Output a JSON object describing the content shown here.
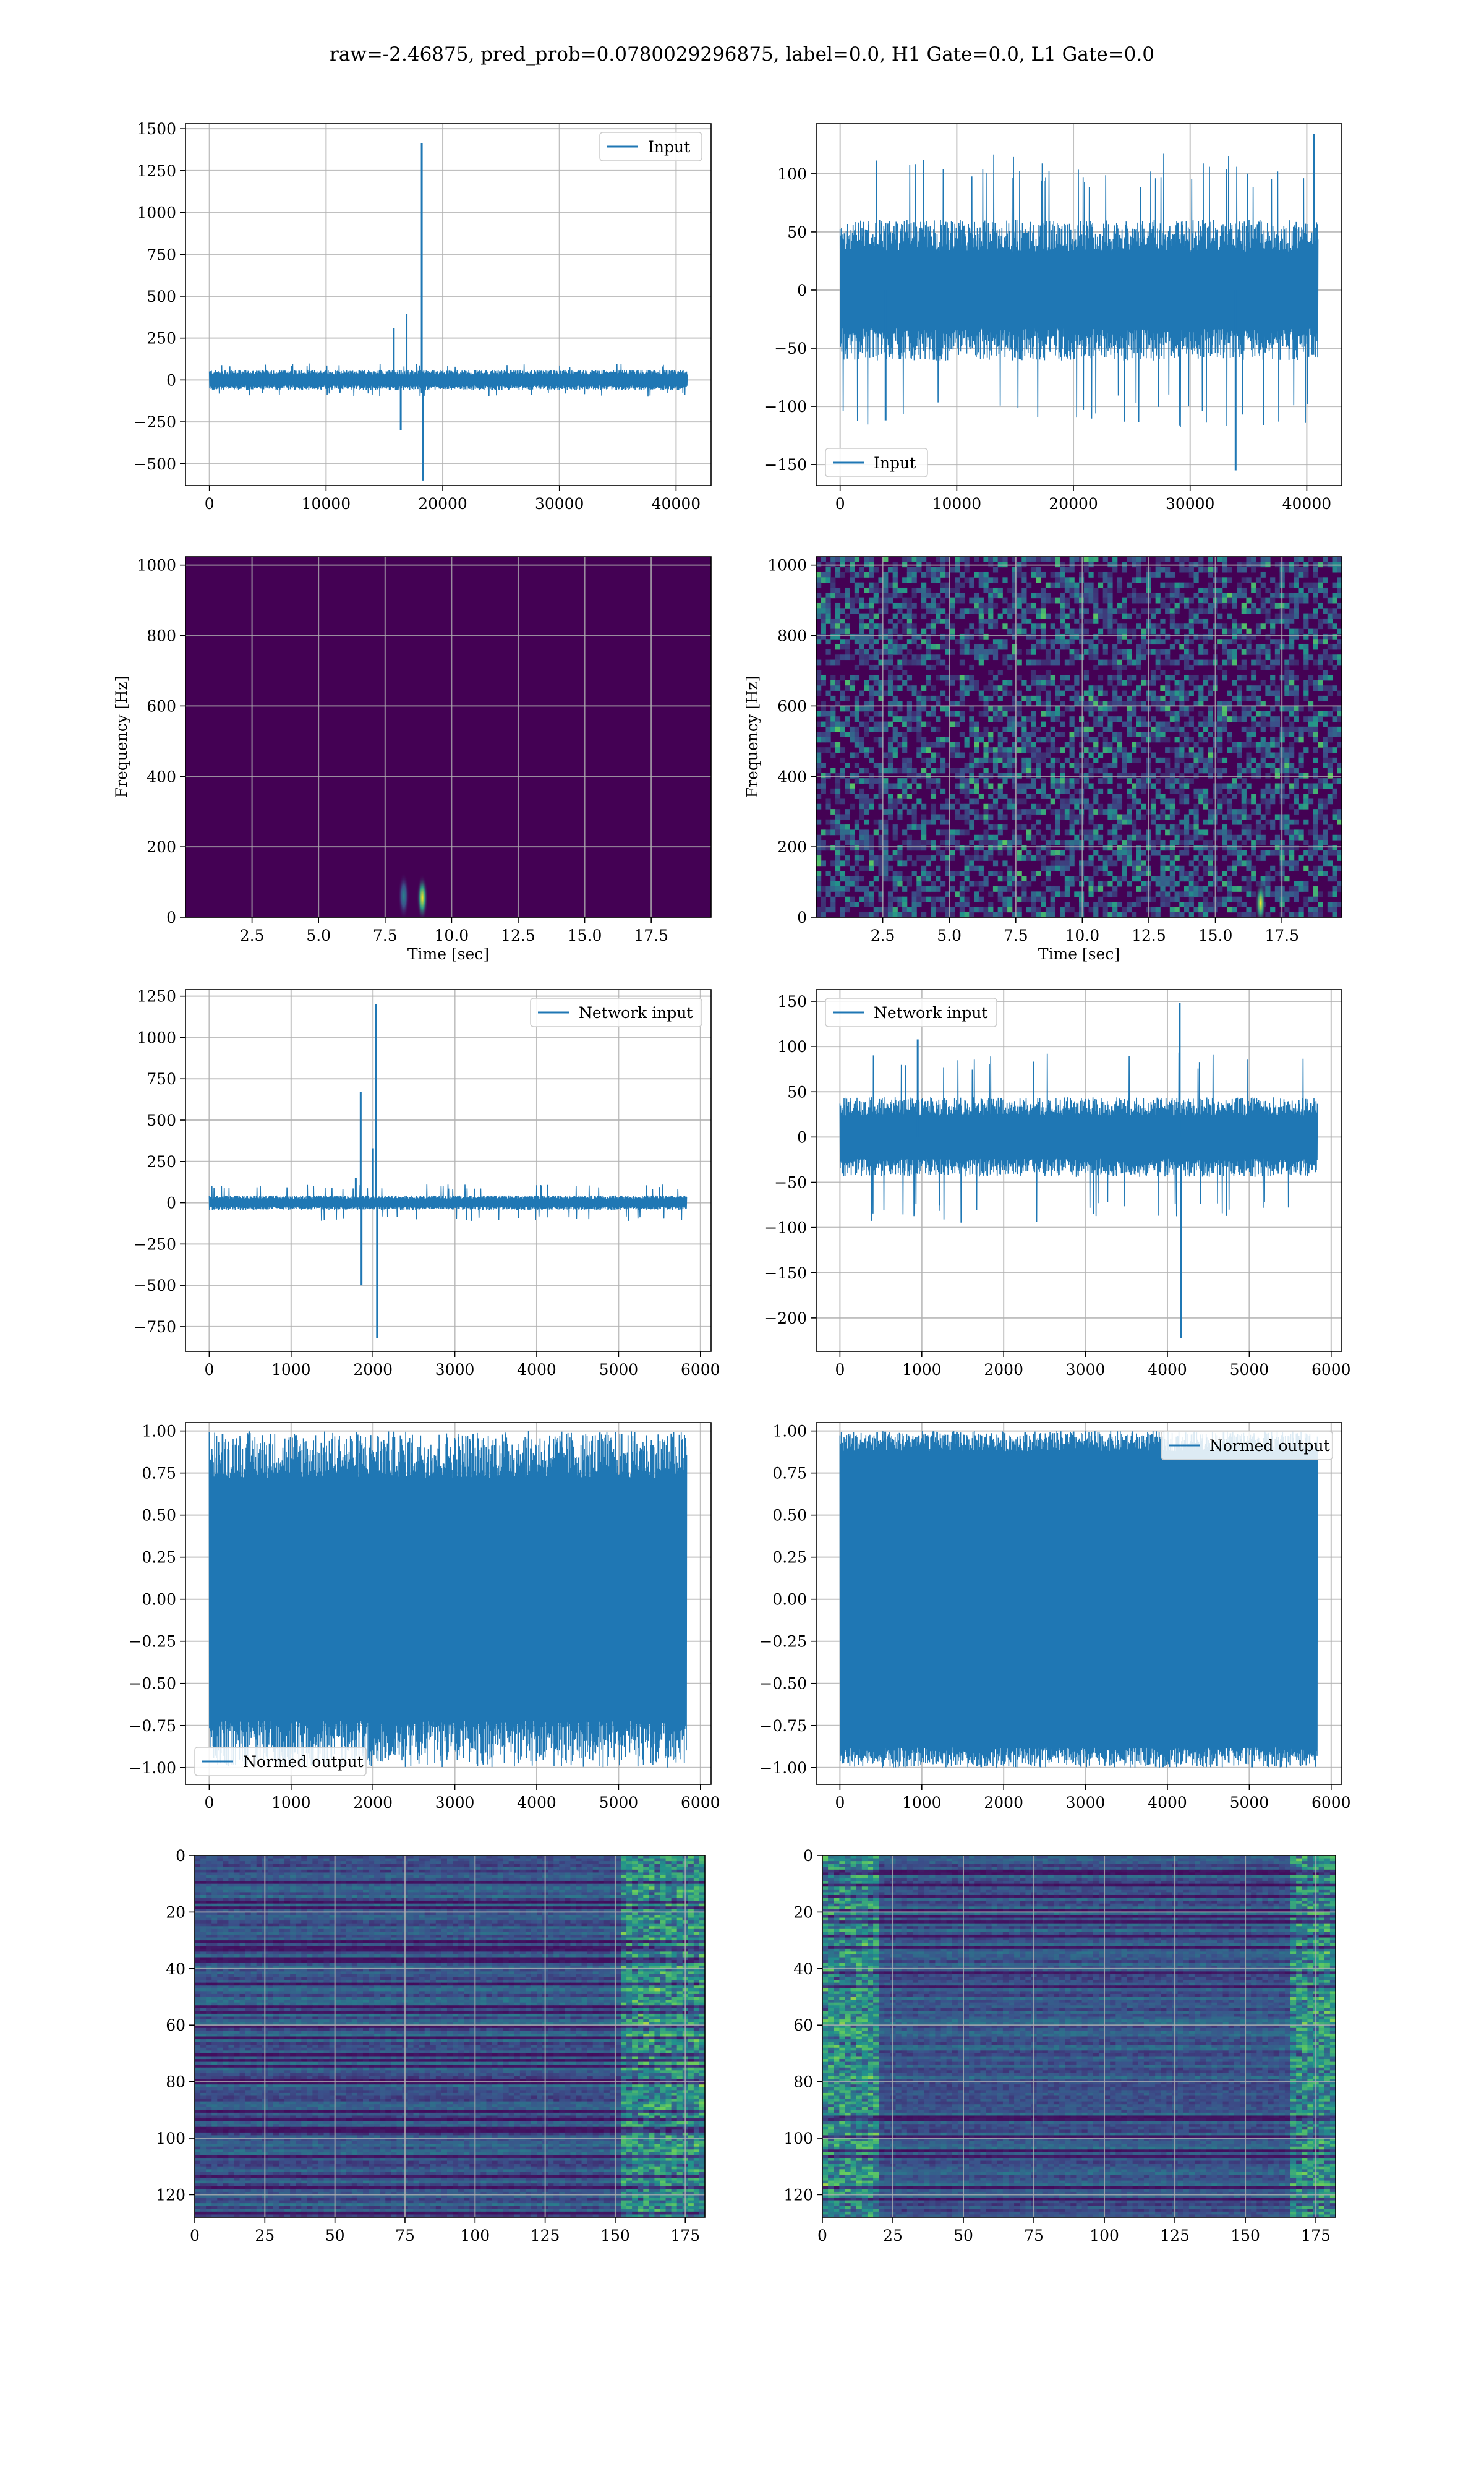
{
  "suptitle": "raw=-2.46875, pred_prob=0.0780029296875, label=0.0, H1 Gate=0.0, L1 Gate=0.0",
  "colors": {
    "line": "#1f77b4",
    "grid": "#b0b0b0",
    "viridis_dark": "#440154"
  },
  "chart_data": [
    {
      "id": "h1-input",
      "type": "line",
      "legend": {
        "label": "Input",
        "placement": "top-right"
      },
      "xticks": [
        0,
        10000,
        20000,
        30000,
        40000
      ],
      "yticks": [
        -500,
        -250,
        0,
        250,
        500,
        750,
        1000,
        1250,
        1500
      ],
      "xlim": [
        -2050,
        43000
      ],
      "ylim": [
        -630,
        1530
      ],
      "series": {
        "x_range": [
          0,
          40960
        ],
        "noise_amplitude": 55,
        "envelope_max": 100,
        "spikes": [
          {
            "x": 15800,
            "y": 310
          },
          {
            "x": 16400,
            "y": -300
          },
          {
            "x": 16900,
            "y": 395
          },
          {
            "x": 18200,
            "y": 1415
          },
          {
            "x": 18300,
            "y": -600
          }
        ]
      },
      "grid": true
    },
    {
      "id": "l1-input",
      "type": "line",
      "legend": {
        "label": "Input",
        "placement": "bottom-left"
      },
      "xticks": [
        0,
        10000,
        20000,
        30000,
        40000
      ],
      "yticks": [
        -150,
        -100,
        -50,
        0,
        50,
        100
      ],
      "xlim": [
        -2050,
        43000
      ],
      "ylim": [
        -168,
        143
      ],
      "series": {
        "x_range": [
          0,
          40960
        ],
        "noise_amplitude": 55,
        "envelope_max": 118,
        "spikes": [
          {
            "x": 33900,
            "y": -155
          },
          {
            "x": 40600,
            "y": 134
          },
          {
            "x": 3900,
            "y": -112
          }
        ]
      },
      "grid": true
    },
    {
      "id": "h1-spectrogram",
      "type": "heatmap",
      "xlabel": "Time [sec]",
      "ylabel": "Frequency [Hz]",
      "xticks": [
        2.5,
        5.0,
        7.5,
        10.0,
        12.5,
        15.0,
        17.5
      ],
      "yticks": [
        0,
        200,
        400,
        600,
        800,
        1000
      ],
      "xlim": [
        0,
        19.75
      ],
      "ylim": [
        0,
        1024
      ],
      "texture": "flat",
      "blobs": [
        {
          "x": 8.9,
          "y": 55,
          "intensity": 1.0
        },
        {
          "x": 8.2,
          "y": 60,
          "intensity": 0.45
        }
      ],
      "grid": true
    },
    {
      "id": "l1-spectrogram",
      "type": "heatmap",
      "xlabel": "Time [sec]",
      "ylabel": "Frequency [Hz]",
      "xticks": [
        2.5,
        5.0,
        7.5,
        10.0,
        12.5,
        15.0,
        17.5
      ],
      "yticks": [
        0,
        200,
        400,
        600,
        800,
        1000
      ],
      "xlim": [
        0,
        19.75
      ],
      "ylim": [
        0,
        1024
      ],
      "texture": "noisy",
      "blobs": [
        {
          "x": 16.7,
          "y": 40,
          "intensity": 1.0
        }
      ],
      "grid": true
    },
    {
      "id": "h1-network-input",
      "type": "line",
      "legend": {
        "label": "Network input",
        "placement": "top-right"
      },
      "xticks": [
        0,
        1000,
        2000,
        3000,
        4000,
        5000,
        6000
      ],
      "yticks": [
        -750,
        -500,
        -250,
        0,
        250,
        500,
        750,
        1000,
        1250
      ],
      "xlim": [
        -290,
        6130
      ],
      "ylim": [
        -900,
        1290
      ],
      "series": {
        "x_range": [
          0,
          5832
        ],
        "noise_amplitude": 40,
        "envelope_max": 110,
        "spikes": [
          {
            "x": 1790,
            "y": 150
          },
          {
            "x": 1850,
            "y": 670
          },
          {
            "x": 1860,
            "y": -500
          },
          {
            "x": 2000,
            "y": 330
          },
          {
            "x": 2040,
            "y": 1200
          },
          {
            "x": 2050,
            "y": -820
          }
        ]
      },
      "grid": true
    },
    {
      "id": "l1-network-input",
      "type": "line",
      "legend": {
        "label": "Network input",
        "placement": "top-left"
      },
      "xticks": [
        0,
        1000,
        2000,
        3000,
        4000,
        5000,
        6000
      ],
      "yticks": [
        -200,
        -150,
        -100,
        -50,
        0,
        50,
        100,
        150
      ],
      "xlim": [
        -290,
        6130
      ],
      "ylim": [
        -237,
        163
      ],
      "series": {
        "x_range": [
          0,
          5832
        ],
        "noise_amplitude": 40,
        "envelope_max": 95,
        "spikes": [
          {
            "x": 4150,
            "y": 148
          },
          {
            "x": 4170,
            "y": -222
          },
          {
            "x": 950,
            "y": 108
          }
        ]
      },
      "grid": true
    },
    {
      "id": "h1-normed-output",
      "type": "line",
      "legend": {
        "label": "Normed output",
        "placement": "bottom-left"
      },
      "xticks": [
        0,
        1000,
        2000,
        3000,
        4000,
        5000,
        6000
      ],
      "yticks": [
        -1.0,
        -0.75,
        -0.5,
        -0.25,
        0.0,
        0.25,
        0.5,
        0.75,
        1.0
      ],
      "xlim": [
        -290,
        6130
      ],
      "ylim": [
        -1.1,
        1.05
      ],
      "series": {
        "x_range": [
          0,
          5832
        ],
        "fill_band": [
          -0.72,
          0.72
        ],
        "envelope_max": 1.0
      },
      "grid": true
    },
    {
      "id": "l1-normed-output",
      "type": "line",
      "legend": {
        "label": "Normed output",
        "placement": "top-right"
      },
      "xticks": [
        0,
        1000,
        2000,
        3000,
        4000,
        5000,
        6000
      ],
      "yticks": [
        -1.0,
        -0.75,
        -0.5,
        -0.25,
        0.0,
        0.25,
        0.5,
        0.75,
        1.0
      ],
      "xlim": [
        -290,
        6130
      ],
      "ylim": [
        -1.1,
        1.05
      ],
      "series": {
        "x_range": [
          0,
          5832
        ],
        "fill_band": [
          -0.88,
          0.88
        ],
        "envelope_max": 1.0
      },
      "grid": true
    },
    {
      "id": "h1-feature-map",
      "type": "heatmap",
      "xticks": [
        0,
        25,
        50,
        75,
        100,
        125,
        150,
        175
      ],
      "yticks": [
        0,
        20,
        40,
        60,
        80,
        100,
        120
      ],
      "xlim": [
        0,
        182
      ],
      "ylim": [
        128,
        0
      ],
      "texture": "rows",
      "grid": true
    },
    {
      "id": "l1-feature-map",
      "type": "heatmap",
      "xticks": [
        0,
        25,
        50,
        75,
        100,
        125,
        150,
        175
      ],
      "yticks": [
        0,
        20,
        40,
        60,
        80,
        100,
        120
      ],
      "xlim": [
        0,
        182
      ],
      "ylim": [
        128,
        0
      ],
      "texture": "rows",
      "grid": true
    }
  ]
}
